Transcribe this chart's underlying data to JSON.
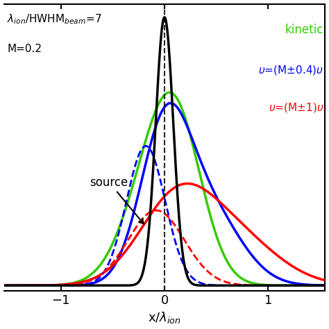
{
  "title_line1": "$\\lambda_{ion}$/HWHM$_{beam}$=7",
  "title_line2": "M=0.2",
  "xlabel": "x/$\\lambda_{ion}$",
  "xlim": [
    -1.55,
    1.55
  ],
  "ylim": [
    -0.02,
    1.05
  ],
  "xticks": [
    -1,
    0,
    1
  ],
  "source_label": "source",
  "kinetic_label": "kinetic",
  "source_color": "#000000",
  "kinetic_color": "#33cc00",
  "blue_color": "#0000ff",
  "red_color": "#ff0000",
  "background_color": "#ffffff"
}
